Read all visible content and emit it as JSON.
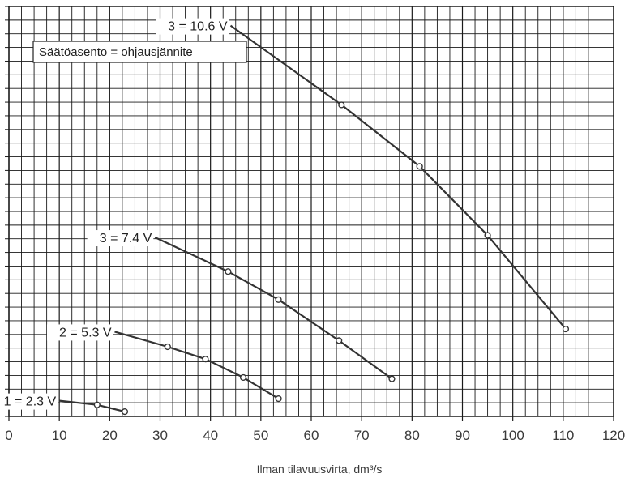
{
  "chart_data": {
    "type": "line",
    "title": "",
    "xlabel": "Ilman tilavuusvirta, dm³/s",
    "ylabel": "",
    "xlim": [
      0,
      120
    ],
    "x_ticks": [
      0,
      10,
      20,
      30,
      40,
      50,
      60,
      70,
      80,
      90,
      100,
      110,
      120
    ],
    "grid": true,
    "annotation": "Säätöasento = ohjausjännite",
    "series": [
      {
        "name": "1 = 2.3 V",
        "points": [
          [
            10,
            23
          ],
          [
            17.5,
            17
          ],
          [
            23,
            7
          ]
        ]
      },
      {
        "name": "2 = 5.3 V",
        "points": [
          [
            21,
            124
          ],
          [
            31.5,
            102
          ],
          [
            39,
            84
          ],
          [
            46.5,
            57
          ],
          [
            53.5,
            26
          ]
        ]
      },
      {
        "name": "3 = 7.4 V",
        "points": [
          [
            29,
            262
          ],
          [
            43.5,
            212
          ],
          [
            53.5,
            171
          ],
          [
            65.5,
            111
          ],
          [
            76,
            55
          ]
        ]
      },
      {
        "name": "3 = 10.6 V",
        "points": [
          [
            44,
            572
          ],
          [
            66,
            456
          ],
          [
            81.5,
            366
          ],
          [
            95,
            265
          ],
          [
            110.5,
            128
          ]
        ]
      }
    ]
  },
  "colors": {
    "line": "#333333",
    "grid": "#1a1a1a",
    "background": "#ffffff"
  }
}
